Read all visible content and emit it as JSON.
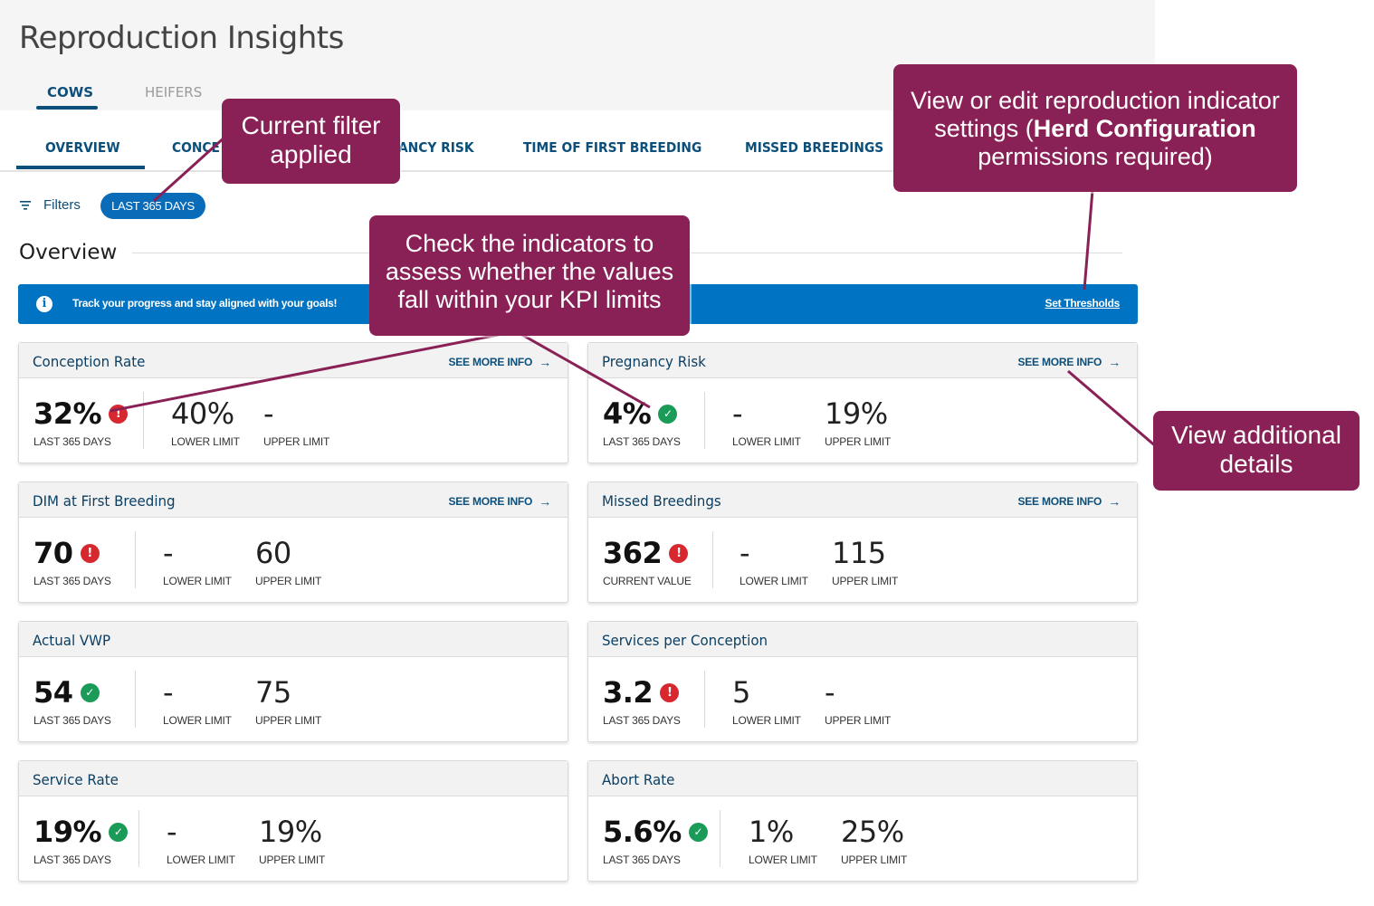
{
  "header": {
    "title": "Reproduction Insights"
  },
  "top_tabs": [
    {
      "label": "COWS",
      "active": true
    },
    {
      "label": "HEIFERS",
      "active": false
    }
  ],
  "sub_tabs": [
    {
      "label": "OVERVIEW",
      "active": true
    },
    {
      "label": "CONCE"
    },
    {
      "label": "ANCY RISK"
    },
    {
      "label": "TIME OF FIRST BREEDING"
    },
    {
      "label": "MISSED BREEDINGS"
    }
  ],
  "filters": {
    "label": "Filters",
    "chip": "LAST 365 DAYS"
  },
  "overview": {
    "title": "Overview"
  },
  "banner": {
    "message": "Track your progress and stay aligned with your goals!",
    "link": "Set Thresholds"
  },
  "cards": [
    {
      "title": "Conception Rate",
      "more": "SEE MORE INFO",
      "value": "32%",
      "status": "bad",
      "value_label": "LAST 365 DAYS",
      "lower": "40%",
      "lower_label": "LOWER LIMIT",
      "upper": "-",
      "upper_label": "UPPER LIMIT"
    },
    {
      "title": "Pregnancy Risk",
      "more": "SEE MORE INFO",
      "value": "4%",
      "status": "good",
      "value_label": "LAST 365 DAYS",
      "lower": "-",
      "lower_label": "LOWER LIMIT",
      "upper": "19%",
      "upper_label": "UPPER LIMIT"
    },
    {
      "title": "DIM at First Breeding",
      "more": "SEE MORE INFO",
      "value": "70",
      "status": "bad",
      "value_label": "LAST 365 DAYS",
      "lower": "-",
      "lower_label": "LOWER LIMIT",
      "upper": "60",
      "upper_label": "UPPER LIMIT"
    },
    {
      "title": "Missed Breedings",
      "more": "SEE MORE INFO",
      "value": "362",
      "status": "bad",
      "value_label": "CURRENT VALUE",
      "lower": "-",
      "lower_label": "LOWER LIMIT",
      "upper": "115",
      "upper_label": "UPPER LIMIT"
    },
    {
      "title": "Actual VWP",
      "value": "54",
      "status": "good",
      "value_label": "LAST 365 DAYS",
      "lower": "-",
      "lower_label": "LOWER LIMIT",
      "upper": "75",
      "upper_label": "UPPER LIMIT"
    },
    {
      "title": "Services per Conception",
      "value": "3.2",
      "status": "bad",
      "value_label": "LAST 365 DAYS",
      "lower": "5",
      "lower_label": "LOWER LIMIT",
      "upper": "-",
      "upper_label": "UPPER LIMIT"
    },
    {
      "title": "Service Rate",
      "value": "19%",
      "status": "good",
      "value_label": "LAST 365 DAYS",
      "lower": "-",
      "lower_label": "LOWER LIMIT",
      "upper": "19%",
      "upper_label": "UPPER LIMIT"
    },
    {
      "title": "Abort Rate",
      "value": "5.6%",
      "status": "good",
      "value_label": "LAST 365 DAYS",
      "lower": "1%",
      "lower_label": "LOWER LIMIT",
      "upper": "25%",
      "upper_label": "UPPER LIMIT"
    }
  ],
  "callouts": {
    "filter": {
      "line1": "Current filter",
      "line2": "applied"
    },
    "indicators": {
      "line1": "Check the indicators to",
      "line2": "assess whether the values",
      "line3": "fall within your KPI limits"
    },
    "settings": {
      "line1": "View or edit reproduction indicator",
      "line2a": "settings (",
      "line2b": "Herd Configuration",
      "line3": "permissions required)"
    },
    "details": {
      "line1": "View additional",
      "line2": "details"
    }
  },
  "colors": {
    "primary": "#0b4f7a",
    "banner": "#0073c2",
    "callout": "#8a2156",
    "bad": "#d7282f",
    "good": "#1a9b57"
  },
  "icons": {
    "status_bad": "exclamation-circle-icon",
    "status_good": "check-circle-icon",
    "filters": "filter-icon",
    "info": "info-icon",
    "more": "arrow-right-icon"
  }
}
